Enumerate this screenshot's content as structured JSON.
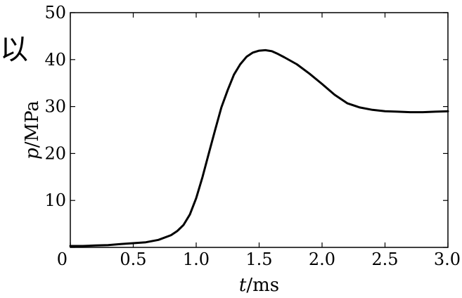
{
  "stray_text": "以",
  "chart_data": {
    "type": "line",
    "title": "",
    "xlabel": "t/ms",
    "xlabel_parts": {
      "var": "t",
      "unit": "/ms"
    },
    "ylabel": "p/MPa",
    "ylabel_parts": {
      "var": "p",
      "unit": "/MPa"
    },
    "xlim": [
      0,
      3.0
    ],
    "ylim": [
      0,
      50
    ],
    "xticks": [
      0,
      0.5,
      1.0,
      1.5,
      2.0,
      2.5,
      3.0
    ],
    "xtick_labels": [
      "0",
      "0.5",
      "1.0",
      "1.5",
      "2.0",
      "2.5",
      "3.0"
    ],
    "yticks": [
      0,
      10,
      20,
      30,
      40,
      50
    ],
    "ytick_labels": [
      "0",
      "10",
      "20",
      "30",
      "40",
      "50"
    ],
    "grid": false,
    "legend": "none",
    "series": [
      {
        "color": "#000000",
        "x": [
          0.0,
          0.1,
          0.2,
          0.3,
          0.4,
          0.5,
          0.6,
          0.7,
          0.8,
          0.85,
          0.9,
          0.95,
          1.0,
          1.05,
          1.1,
          1.15,
          1.2,
          1.25,
          1.3,
          1.35,
          1.4,
          1.45,
          1.5,
          1.55,
          1.6,
          1.65,
          1.7,
          1.8,
          1.9,
          2.0,
          2.1,
          2.2,
          2.3,
          2.4,
          2.5,
          2.6,
          2.7,
          2.8,
          2.9,
          3.0
        ],
        "y": [
          0.3,
          0.3,
          0.4,
          0.5,
          0.7,
          0.9,
          1.1,
          1.6,
          2.6,
          3.5,
          4.8,
          7.0,
          10.5,
          15.0,
          20.0,
          25.0,
          29.8,
          33.5,
          36.8,
          39.0,
          40.6,
          41.5,
          41.9,
          42.0,
          41.8,
          41.2,
          40.5,
          39.0,
          37.0,
          34.8,
          32.5,
          30.7,
          29.8,
          29.3,
          29.0,
          28.9,
          28.8,
          28.8,
          28.9,
          29.0
        ]
      }
    ]
  }
}
